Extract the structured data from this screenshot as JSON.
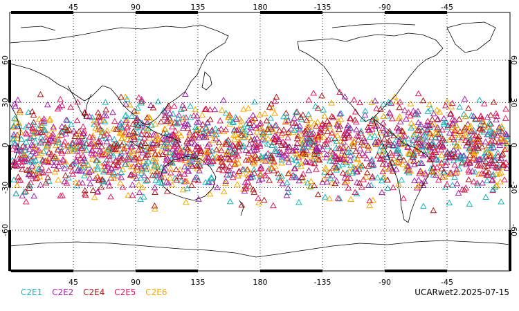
{
  "map": {
    "projection": "cylindrical-equidistant",
    "center_lon": 180,
    "lon_tick_labels": [
      "45",
      "90",
      "135",
      "180",
      "-135",
      "-90",
      "-45"
    ],
    "lat_tick_labels": [
      "60",
      "30",
      "0",
      "-30",
      "-60"
    ],
    "gridlines": "dotted",
    "marker": "triangle-outline",
    "density_note_hidden": ""
  },
  "legend": {
    "items": [
      {
        "label": "C2E1",
        "color": "#19b3b8"
      },
      {
        "label": "C2E2",
        "color": "#a020a8"
      },
      {
        "label": "C2E4",
        "color": "#b01818"
      },
      {
        "label": "C2E5",
        "color": "#e01860"
      },
      {
        "label": "C2E6",
        "color": "#f5a800"
      }
    ]
  },
  "stamp": "UCARwet2.2025-07-15"
}
